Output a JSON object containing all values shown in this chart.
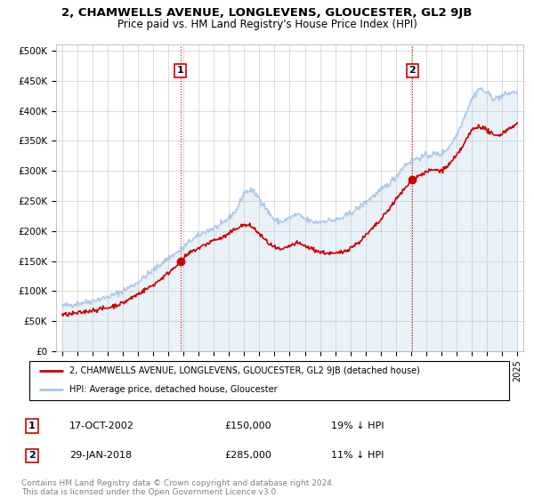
{
  "title": "2, CHAMWELLS AVENUE, LONGLEVENS, GLOUCESTER, GL2 9JB",
  "subtitle": "Price paid vs. HM Land Registry's House Price Index (HPI)",
  "legend_line1": "2, CHAMWELLS AVENUE, LONGLEVENS, GLOUCESTER, GL2 9JB (detached house)",
  "legend_line2": "HPI: Average price, detached house, Gloucester",
  "transaction1_label": "1",
  "transaction1_date": "17-OCT-2002",
  "transaction1_price": "£150,000",
  "transaction1_hpi": "19% ↓ HPI",
  "transaction1_year": 2002.8,
  "transaction1_value": 150000,
  "transaction2_label": "2",
  "transaction2_date": "29-JAN-2018",
  "transaction2_price": "£285,000",
  "transaction2_hpi": "11% ↓ HPI",
  "transaction2_year": 2018.08,
  "transaction2_value": 285000,
  "hpi_color": "#a8c8e8",
  "hpi_fill_color": "#ddeef8",
  "price_color": "#cc0000",
  "marker_color": "#cc0000",
  "footnote": "Contains HM Land Registry data © Crown copyright and database right 2024.\nThis data is licensed under the Open Government Licence v3.0.",
  "ylim": [
    0,
    510000
  ],
  "yticks": [
    0,
    50000,
    100000,
    150000,
    200000,
    250000,
    300000,
    350000,
    400000,
    450000,
    500000
  ],
  "ytick_labels": [
    "£0",
    "£50K",
    "£100K",
    "£150K",
    "£200K",
    "£250K",
    "£300K",
    "£350K",
    "£400K",
    "£450K",
    "£500K"
  ],
  "xlim_start": 1994.6,
  "xlim_end": 2025.4,
  "xticks": [
    1995,
    1996,
    1997,
    1998,
    1999,
    2000,
    2001,
    2002,
    2003,
    2004,
    2005,
    2006,
    2007,
    2008,
    2009,
    2010,
    2011,
    2012,
    2013,
    2014,
    2015,
    2016,
    2017,
    2018,
    2019,
    2020,
    2021,
    2022,
    2023,
    2024,
    2025
  ]
}
